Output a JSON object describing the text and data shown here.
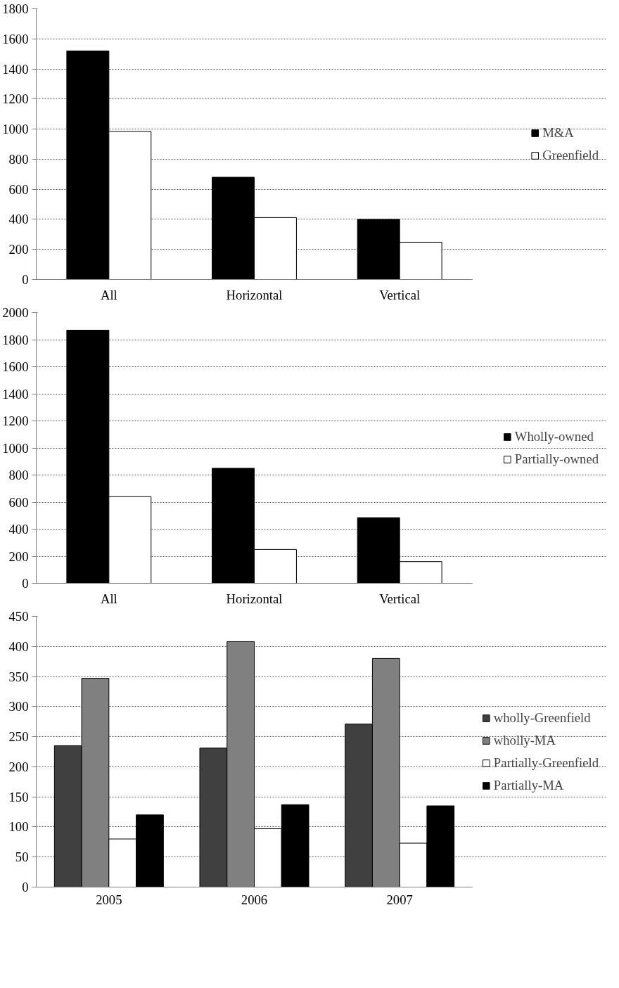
{
  "chart_data": [
    {
      "type": "bar",
      "categories": [
        "All",
        "Horizontal",
        "Vertical"
      ],
      "ylim": [
        0,
        1800
      ],
      "yticks": [
        0,
        200,
        400,
        600,
        800,
        1000,
        1200,
        1400,
        1600,
        1800
      ],
      "grid": "y",
      "legend": "right",
      "series": [
        {
          "name": "M&A",
          "color": "#000000",
          "values": [
            1520,
            680,
            400
          ]
        },
        {
          "name": "Greenfield",
          "color": "#ffffff",
          "values": [
            985,
            412,
            248
          ]
        }
      ]
    },
    {
      "type": "bar",
      "categories": [
        "All",
        "Horizontal",
        "Vertical"
      ],
      "ylim": [
        0,
        2000
      ],
      "yticks": [
        0,
        200,
        400,
        600,
        800,
        1000,
        1200,
        1400,
        1600,
        1800,
        2000
      ],
      "grid": "y",
      "legend": "right",
      "series": [
        {
          "name": "Wholly-owned",
          "color": "#000000",
          "values": [
            1870,
            850,
            485
          ]
        },
        {
          "name": "Partially-owned",
          "color": "#ffffff",
          "values": [
            640,
            250,
            160
          ]
        }
      ]
    },
    {
      "type": "bar",
      "categories": [
        "2005",
        "2006",
        "2007"
      ],
      "ylim": [
        0,
        450
      ],
      "yticks": [
        0,
        50,
        100,
        150,
        200,
        250,
        300,
        350,
        400,
        450
      ],
      "grid": "y",
      "legend": "right",
      "series": [
        {
          "name": "wholly-Greenfield",
          "color": "#404040",
          "values": [
            235,
            231,
            271
          ]
        },
        {
          "name": "wholly-MA",
          "color": "#808080",
          "values": [
            347,
            408,
            380
          ]
        },
        {
          "name": "Partially-Greenfield",
          "color": "#ffffff",
          "values": [
            80,
            97,
            73
          ]
        },
        {
          "name": "Partially-MA",
          "color": "#000000",
          "values": [
            120,
            137,
            135
          ]
        }
      ]
    }
  ]
}
